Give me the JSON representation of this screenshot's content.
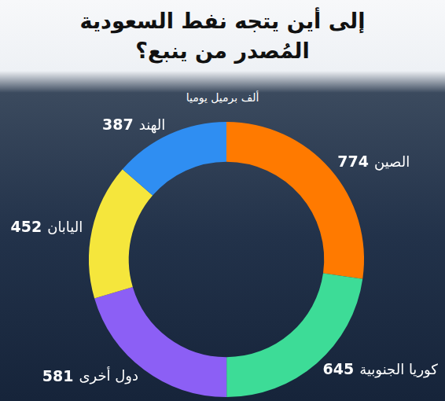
{
  "chart_data": {
    "type": "doughnut",
    "title": "إلى أين يتجه نفط السعودية المُصدر من ينبع؟",
    "subtitle": "ألف برميل يوميا",
    "categories": [
      "الصين",
      "كوريا الجنوبية",
      "دول أخرى",
      "اليابان",
      "الهند"
    ],
    "values": [
      774,
      645,
      581,
      452,
      387
    ],
    "colors": [
      "#ff7a00",
      "#3ddc97",
      "#8c5ff5",
      "#f5e63c",
      "#2f8ef2"
    ],
    "data_labels": true
  }
}
